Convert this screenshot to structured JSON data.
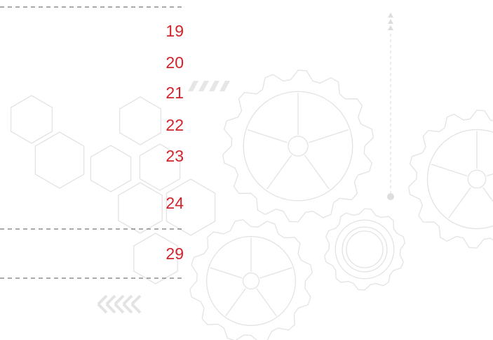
{
  "numbers": [
    19,
    20,
    21,
    22,
    23,
    24,
    29
  ]
}
